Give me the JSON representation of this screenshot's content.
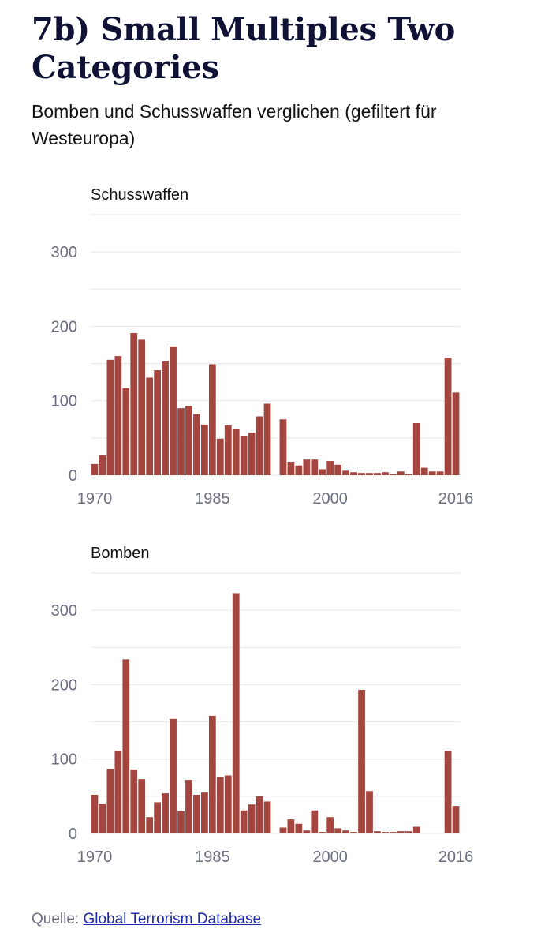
{
  "header": {
    "title": "7b) Small Multiples Two Categories",
    "subtitle": "Bomben und Schusswaffen verglichen (gefiltert für Westeuropa)"
  },
  "source": {
    "label": "Quelle:",
    "link_text": "Global Terrorism Database"
  },
  "colors": {
    "bar": "#a5453f",
    "grid": "#e6e6e6",
    "tick_text": "#6b6f80"
  },
  "chart_data": [
    {
      "type": "bar",
      "title": "Schusswaffen",
      "ylim": [
        0,
        350
      ],
      "yticks": [
        0,
        100,
        200,
        300
      ],
      "xticks": [
        "1970",
        "1985",
        "2000",
        "2016"
      ],
      "grid": true,
      "x": [
        1970,
        1971,
        1972,
        1973,
        1974,
        1975,
        1976,
        1977,
        1978,
        1979,
        1980,
        1981,
        1982,
        1983,
        1984,
        1985,
        1986,
        1987,
        1988,
        1989,
        1990,
        1991,
        1992,
        1994,
        1995,
        1996,
        1997,
        1998,
        1999,
        2000,
        2001,
        2002,
        2003,
        2004,
        2005,
        2006,
        2007,
        2008,
        2009,
        2010,
        2011,
        2012,
        2013,
        2014,
        2015,
        2016
      ],
      "values": [
        15,
        27,
        155,
        160,
        117,
        191,
        182,
        131,
        141,
        153,
        173,
        90,
        93,
        82,
        68,
        149,
        49,
        67,
        62,
        53,
        57,
        79,
        96,
        75,
        18,
        13,
        21,
        21,
        8,
        19,
        14,
        6,
        4,
        3,
        3,
        3,
        4,
        2,
        5,
        2,
        70,
        10,
        5,
        5,
        158,
        111
      ]
    },
    {
      "type": "bar",
      "title": "Bomben",
      "ylim": [
        0,
        350
      ],
      "yticks": [
        0,
        100,
        200,
        300
      ],
      "xticks": [
        "1970",
        "1985",
        "2000",
        "2016"
      ],
      "grid": true,
      "x": [
        1970,
        1971,
        1972,
        1973,
        1974,
        1975,
        1976,
        1977,
        1978,
        1979,
        1980,
        1981,
        1982,
        1983,
        1984,
        1985,
        1986,
        1987,
        1988,
        1989,
        1990,
        1991,
        1992,
        1994,
        1995,
        1996,
        1997,
        1998,
        1999,
        2000,
        2001,
        2002,
        2003,
        2004,
        2005,
        2006,
        2007,
        2008,
        2009,
        2010,
        2011,
        2015,
        2016
      ],
      "values": [
        52,
        40,
        87,
        111,
        234,
        86,
        73,
        22,
        42,
        54,
        154,
        30,
        72,
        52,
        55,
        158,
        76,
        78,
        323,
        31,
        39,
        50,
        43,
        8,
        19,
        13,
        4,
        31,
        2,
        22,
        7,
        4,
        2,
        193,
        57,
        3,
        2,
        2,
        3,
        3,
        9,
        111,
        37
      ]
    }
  ]
}
